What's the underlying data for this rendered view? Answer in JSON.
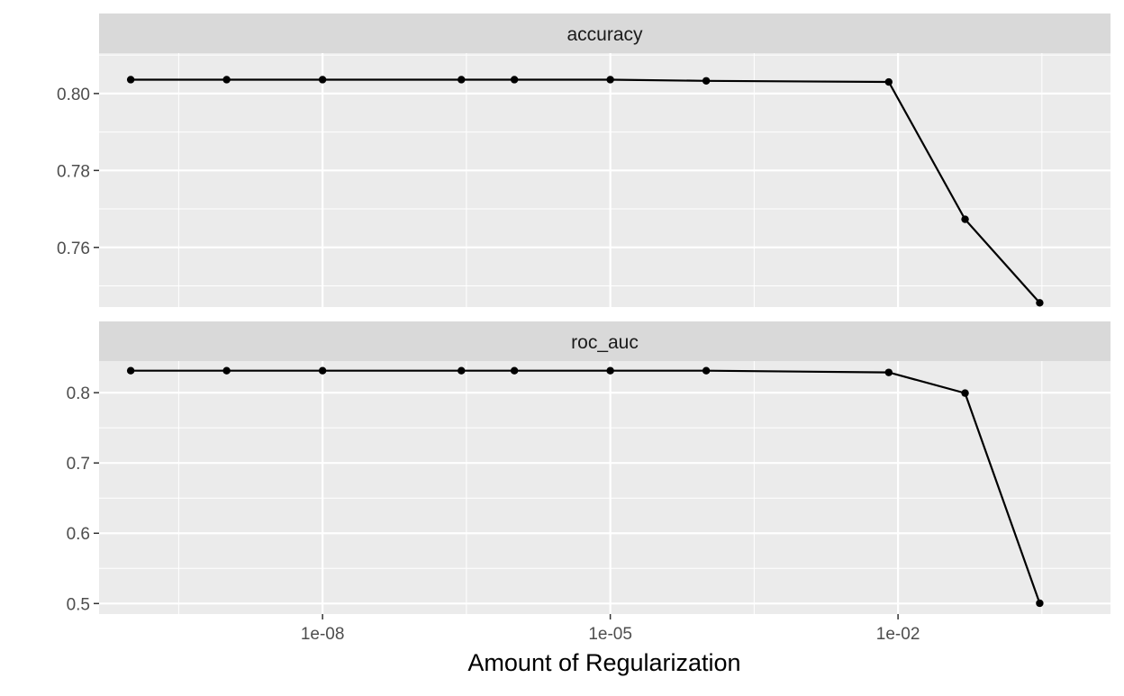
{
  "chart_data": {
    "type": "line",
    "xlabel": "Amount of Regularization",
    "x_scale": "log10",
    "x_ticks": [
      1e-08,
      1e-05,
      0.01
    ],
    "x_tick_labels": [
      "1e-08",
      "1e-05",
      "1e-02"
    ],
    "x": [
      1e-10,
      1e-09,
      1e-08,
      2.8e-07,
      1e-06,
      1e-05,
      0.0001,
      0.008,
      0.05,
      0.3
    ],
    "grid": true,
    "legend": "none",
    "panels": [
      {
        "title": "accuracy",
        "values": [
          0.8036,
          0.8036,
          0.8036,
          0.8036,
          0.8036,
          0.8036,
          0.8033,
          0.803,
          0.7673,
          0.7456
        ],
        "y_ticks": [
          0.76,
          0.78,
          0.8
        ],
        "y_tick_labels": [
          "0.76",
          "0.78",
          "0.80"
        ],
        "ylim": [
          0.7445,
          0.8105
        ]
      },
      {
        "title": "roc_auc",
        "values": [
          0.8313,
          0.8313,
          0.8313,
          0.8313,
          0.8313,
          0.8313,
          0.8313,
          0.8288,
          0.7994,
          0.5004
        ],
        "y_ticks": [
          0.5,
          0.6,
          0.7,
          0.8
        ],
        "y_tick_labels": [
          "0.5",
          "0.6",
          "0.7",
          "0.8"
        ],
        "ylim": [
          0.485,
          0.845
        ]
      }
    ]
  },
  "colors": {
    "panel_bg": "#ebebeb",
    "strip_bg": "#d9d9d9",
    "grid": "#ffffff",
    "line": "#000000",
    "tick_text": "#4d4d4d",
    "strip_text": "#1a1a1a"
  }
}
